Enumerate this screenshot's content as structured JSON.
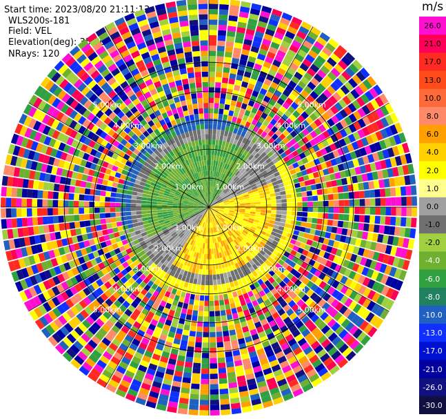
{
  "meta": {
    "start_time": "Start time: 2023/08/20 21:11:13",
    "instrument": "WLS200s-181",
    "field": "Field: VEL",
    "elevation": "Elevation(deg): 35.30",
    "nrays": "NRays: 120"
  },
  "colorbar": {
    "unit": "m/s",
    "labels": [
      "26.0",
      "21.0",
      "17.0",
      "13.0",
      "10.0",
      "8.0",
      "6.0",
      "4.0",
      "2.0",
      "1.0",
      "0.0",
      "-1.0",
      "-2.0",
      "-4.0",
      "-6.0",
      "-8.0",
      "-10.0",
      "-13.0",
      "-17.0",
      "-21.0",
      "-26.0",
      "-30.0"
    ],
    "colors": [
      "#ff0fd0",
      "#ff0058",
      "#ff2a22",
      "#ff4a1a",
      "#ff6a3a",
      "#ff8a6a",
      "#ffa000",
      "#ffd000",
      "#ffff00",
      "#ffff90",
      "#a0a0a0",
      "#707070",
      "#a0d040",
      "#70b030",
      "#30a040",
      "#208060",
      "#2060c0",
      "#1030ff",
      "#0010d0",
      "#0000a0",
      "#101080",
      "#101040"
    ]
  },
  "chart_data": {
    "type": "ppi",
    "field": "VEL",
    "nrays": 120,
    "range_rings_km": [
      1.0,
      2.0,
      3.0,
      4.0,
      5.0
    ],
    "ring_labels": [
      "1.00km",
      "2.00km",
      "3.00km",
      "4.00km",
      "5.00km"
    ],
    "max_range_km": 7.2,
    "colorscale": "m/s"
  }
}
